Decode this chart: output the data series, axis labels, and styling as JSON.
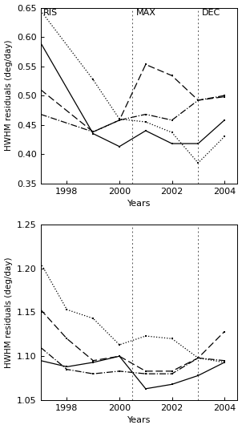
{
  "top_panel": {
    "ylabel": "HWHM residuals (deg/day)",
    "xlabel": "Years",
    "ylim": [
      0.35,
      0.65
    ],
    "yticks": [
      0.35,
      0.4,
      0.45,
      0.5,
      0.55,
      0.6,
      0.65
    ],
    "xlim": [
      1997.0,
      2004.5
    ],
    "xticks": [
      1998,
      2000,
      2002,
      2004
    ],
    "vlines": [
      2000.5,
      2003.0
    ],
    "labels": {
      "RIS": [
        1997.1,
        0.648
      ],
      "MAX": [
        2000.65,
        0.648
      ],
      "DEC": [
        2003.15,
        0.648
      ]
    },
    "lines": {
      "solid": {
        "x": [
          1997,
          1999,
          2000,
          2001,
          2002,
          2003,
          2004
        ],
        "y": [
          0.59,
          0.435,
          0.413,
          0.44,
          0.418,
          0.418,
          0.458
        ]
      },
      "dashed": {
        "x": [
          1997,
          1999,
          2000,
          2001,
          2002,
          2003,
          2004
        ],
        "y": [
          0.51,
          0.438,
          0.458,
          0.553,
          0.534,
          0.492,
          0.498
        ]
      },
      "dashdot": {
        "x": [
          1997,
          1999,
          2000,
          2001,
          2002,
          2003,
          2004
        ],
        "y": [
          0.468,
          0.438,
          0.458,
          0.468,
          0.458,
          0.492,
          0.5
        ]
      },
      "dotted": {
        "x": [
          1997,
          1999,
          2000,
          2001,
          2002,
          2003,
          2004
        ],
        "y": [
          0.645,
          0.527,
          0.46,
          0.455,
          0.437,
          0.385,
          0.43
        ]
      }
    }
  },
  "bottom_panel": {
    "ylabel": "HWHM residuals (deg/day)",
    "xlabel": "Years",
    "ylim": [
      1.05,
      1.25
    ],
    "yticks": [
      1.05,
      1.1,
      1.15,
      1.2,
      1.25
    ],
    "xlim": [
      1997.0,
      2004.5
    ],
    "xticks": [
      1998,
      2000,
      2002,
      2004
    ],
    "vlines": [
      2000.5,
      2003.0
    ],
    "lines": {
      "solid": {
        "x": [
          1997,
          1998,
          1999,
          2000,
          2001,
          2002,
          2003,
          2004
        ],
        "y": [
          1.095,
          1.088,
          1.093,
          1.1,
          1.063,
          1.068,
          1.078,
          1.093
        ]
      },
      "dashed": {
        "x": [
          1997,
          1998,
          1999,
          2000,
          2001,
          2002,
          2003,
          2004
        ],
        "y": [
          1.153,
          1.12,
          1.095,
          1.1,
          1.083,
          1.083,
          1.098,
          1.128
        ]
      },
      "dashdot": {
        "x": [
          1997,
          1998,
          1999,
          2000,
          2001,
          2002,
          2003,
          2004
        ],
        "y": [
          1.11,
          1.085,
          1.08,
          1.083,
          1.08,
          1.08,
          1.098,
          1.095
        ]
      },
      "dotted": {
        "x": [
          1997,
          1998,
          1999,
          2000,
          2001,
          2002,
          2003,
          2004
        ],
        "y": [
          1.206,
          1.153,
          1.143,
          1.113,
          1.123,
          1.12,
          1.098,
          1.093
        ]
      }
    }
  },
  "line_color": "#000000",
  "background_color": "#ffffff"
}
